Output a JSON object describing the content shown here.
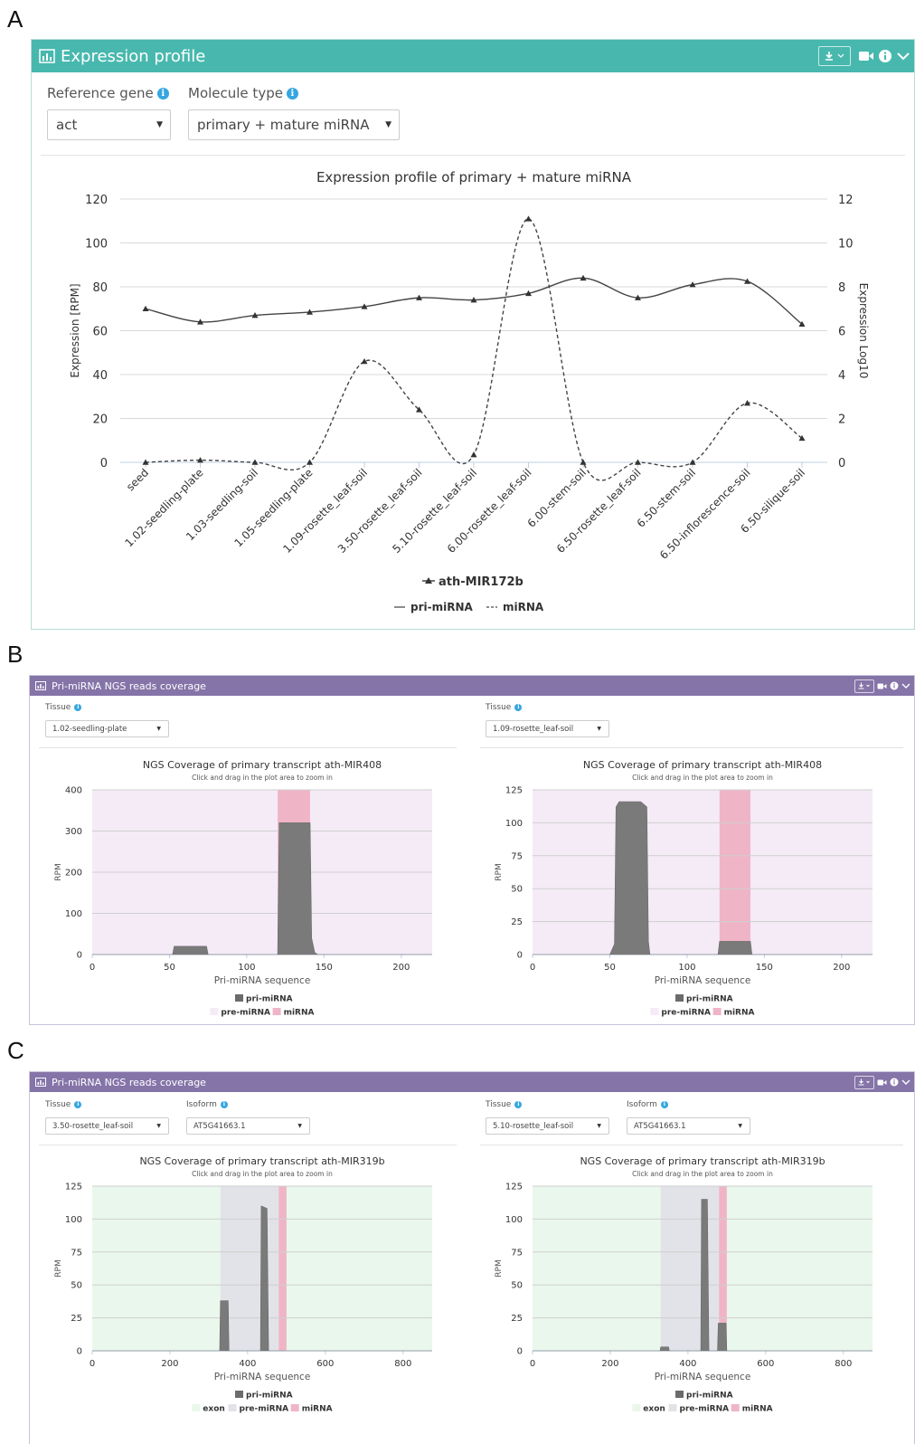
{
  "letters": [
    "A",
    "B",
    "C"
  ],
  "colors": {
    "teal": "#48b8ae",
    "purple": "#8474a8",
    "info": "#35a6e0",
    "bar": "#7a7a7a",
    "pre_fill": "#f5ebf7",
    "mirna_fill": "#efb5c7",
    "exon_fill": "#eaf7ec",
    "pre_gray": "#e2e3e8"
  },
  "panelA": {
    "title": "Expression profile",
    "icons": [
      "bar-chart-icon",
      "download-icon",
      "video-icon",
      "info-icon",
      "chevron-down-icon"
    ],
    "ref_label": "Reference gene",
    "ref_value": "act",
    "mol_label": "Molecule type",
    "mol_value": "primary + mature miRNA"
  },
  "panelB": {
    "title": "Pri-miRNA NGS reads coverage",
    "tissue_label": "Tissue",
    "left_tissue": "1.02-seedling-plate",
    "right_tissue": "1.09-rosette_leaf-soil"
  },
  "panelC": {
    "title": "Pri-miRNA NGS reads coverage",
    "tissue_label": "Tissue",
    "isoform_label": "Isoform",
    "left_tissue": "3.50-rosette_leaf-soil",
    "left_isoform": "AT5G41663.1",
    "right_tissue": "5.10-rosette_leaf-soil",
    "right_isoform": "AT5G41663.1"
  },
  "chart_data": [
    {
      "id": "A",
      "type": "line",
      "title": "Expression profile of primary + mature miRNA",
      "ylabel": "Expression [RPM]",
      "y2label": "Expression Log10",
      "ylim": [
        0,
        120
      ],
      "yticks": [
        0,
        20,
        40,
        60,
        80,
        100,
        120
      ],
      "y2lim": [
        0,
        12
      ],
      "y2ticks": [
        0,
        2,
        4,
        6,
        8,
        10,
        12
      ],
      "grid": true,
      "categories": [
        "seed",
        "1.02-seedling-plate",
        "1.03-seedling-soil",
        "1.05-seedling-plate",
        "1.09-rosette_leaf-soil",
        "3.50-rosette_leaf-soil",
        "5.10-rosette_leaf-soil",
        "6.00-rosette_leaf-soil",
        "6.00-stem-soil",
        "6.50-rosette_leaf-soil",
        "6.50-stem-soil",
        "6.50-inflorescence-soil",
        "6.50-silique-soil"
      ],
      "legend_title": "ath-MIR172b",
      "legend_items": [
        "pri-miRNA",
        "miRNA"
      ],
      "legend_position": "bottom",
      "series": [
        {
          "name": "pri-miRNA",
          "dash": "solid",
          "values": [
            70,
            64,
            67,
            68.5,
            71,
            75,
            74,
            77,
            84,
            75,
            81,
            82.5,
            63
          ]
        },
        {
          "name": "miRNA",
          "dash": "dashed",
          "values": [
            0,
            1,
            0,
            0,
            46,
            24,
            3.5,
            111,
            0,
            0,
            0,
            27,
            11
          ]
        }
      ]
    },
    {
      "id": "B1",
      "type": "area",
      "title": "NGS Coverage of primary transcript ath-MIR408",
      "subtitle": "Click and drag in the plot area to zoom in",
      "xlabel": "Pri-miRNA sequence",
      "ylabel": "RPM",
      "xlim": [
        0,
        220
      ],
      "xticks": [
        0,
        50,
        100,
        150,
        200
      ],
      "ylim": [
        0,
        400
      ],
      "yticks": [
        0,
        100,
        200,
        300,
        400
      ],
      "bands": [
        {
          "from": 0,
          "to": 220,
          "kind": "pre-miRNA"
        },
        {
          "from": 120,
          "to": 141,
          "kind": "miRNA"
        }
      ],
      "coverage": [
        [
          0,
          0
        ],
        [
          52,
          0
        ],
        [
          53,
          20
        ],
        [
          74,
          20
        ],
        [
          75,
          0
        ],
        [
          120,
          0
        ],
        [
          121,
          320
        ],
        [
          141,
          320
        ],
        [
          142,
          40
        ],
        [
          144,
          5
        ],
        [
          146,
          0
        ],
        [
          220,
          0
        ]
      ],
      "series_label": "pri-miRNA",
      "legend_items": [
        "pre-miRNA",
        "miRNA"
      ]
    },
    {
      "id": "B2",
      "type": "area",
      "title": "NGS Coverage of primary transcript ath-MIR408",
      "subtitle": "Click and drag in the plot area to zoom in",
      "xlabel": "Pri-miRNA sequence",
      "ylabel": "RPM",
      "xlim": [
        0,
        220
      ],
      "xticks": [
        0,
        50,
        100,
        150,
        200
      ],
      "ylim": [
        0,
        125
      ],
      "yticks": [
        0,
        25,
        50,
        75,
        100,
        125
      ],
      "bands": [
        {
          "from": 0,
          "to": 220,
          "kind": "pre-miRNA"
        },
        {
          "from": 121,
          "to": 141,
          "kind": "miRNA"
        }
      ],
      "coverage": [
        [
          0,
          0
        ],
        [
          50,
          0
        ],
        [
          53,
          8
        ],
        [
          54,
          112
        ],
        [
          56,
          116
        ],
        [
          70,
          116
        ],
        [
          72,
          114
        ],
        [
          74,
          112
        ],
        [
          75,
          10
        ],
        [
          76,
          0
        ],
        [
          120,
          0
        ],
        [
          121,
          10
        ],
        [
          141,
          10
        ],
        [
          142,
          0
        ],
        [
          220,
          0
        ]
      ],
      "series_label": "pri-miRNA",
      "legend_items": [
        "pre-miRNA",
        "miRNA"
      ]
    },
    {
      "id": "C1",
      "type": "area",
      "title": "NGS Coverage of primary transcript ath-MIR319b",
      "subtitle": "Click and drag in the plot area to zoom in",
      "xlabel": "Pri-miRNA sequence",
      "ylabel": "RPM",
      "xlim": [
        0,
        875
      ],
      "xticks": [
        0,
        200,
        400,
        600,
        800
      ],
      "ylim": [
        0,
        125
      ],
      "yticks": [
        0,
        25,
        50,
        75,
        100,
        125
      ],
      "bands": [
        {
          "from": 0,
          "to": 875,
          "kind": "exon"
        },
        {
          "from": 330,
          "to": 480,
          "kind": "pre-miRNA"
        },
        {
          "from": 480,
          "to": 500,
          "kind": "miRNA"
        }
      ],
      "coverage": [
        [
          0,
          0
        ],
        [
          328,
          0
        ],
        [
          330,
          38
        ],
        [
          350,
          38
        ],
        [
          352,
          0
        ],
        [
          433,
          0
        ],
        [
          435,
          110
        ],
        [
          450,
          108
        ],
        [
          454,
          0
        ],
        [
          875,
          0
        ]
      ],
      "series_label": "pri-miRNA",
      "legend_items": [
        "exon",
        "pre-miRNA",
        "miRNA"
      ]
    },
    {
      "id": "C2",
      "type": "area",
      "title": "NGS Coverage of primary transcript ath-MIR319b",
      "subtitle": "Click and drag in the plot area to zoom in",
      "xlabel": "Pri-miRNA sequence",
      "ylabel": "RPM",
      "xlim": [
        0,
        875
      ],
      "xticks": [
        0,
        200,
        400,
        600,
        800
      ],
      "ylim": [
        0,
        125
      ],
      "yticks": [
        0,
        25,
        50,
        75,
        100,
        125
      ],
      "bands": [
        {
          "from": 0,
          "to": 875,
          "kind": "exon"
        },
        {
          "from": 330,
          "to": 480,
          "kind": "pre-miRNA"
        },
        {
          "from": 480,
          "to": 500,
          "kind": "miRNA"
        }
      ],
      "coverage": [
        [
          0,
          0
        ],
        [
          328,
          0
        ],
        [
          330,
          3
        ],
        [
          350,
          3
        ],
        [
          352,
          0
        ],
        [
          433,
          0
        ],
        [
          435,
          115
        ],
        [
          450,
          115
        ],
        [
          454,
          0
        ],
        [
          476,
          0
        ],
        [
          478,
          21
        ],
        [
          498,
          21
        ],
        [
          500,
          0
        ],
        [
          875,
          0
        ]
      ],
      "series_label": "pri-miRNA",
      "legend_items": [
        "exon",
        "pre-miRNA",
        "miRNA"
      ]
    }
  ]
}
